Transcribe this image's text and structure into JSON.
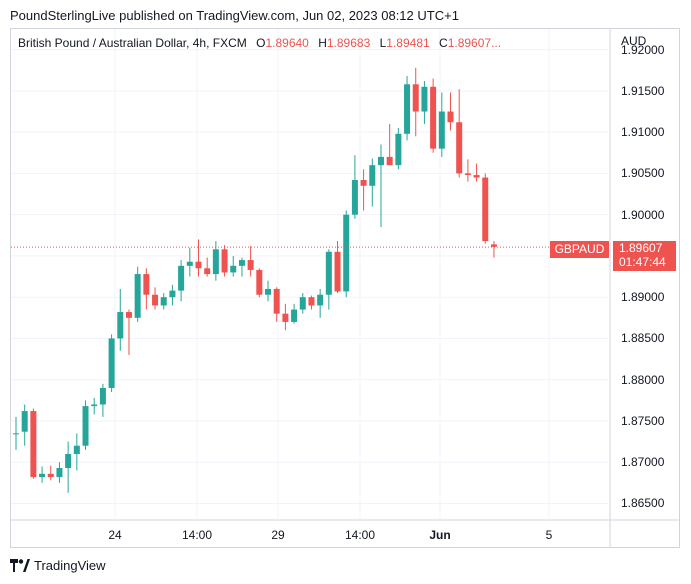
{
  "header": {
    "text": "PoundSterlingLive published on TradingView.com, Jun 02, 2023 08:12 UTC+1"
  },
  "legend": {
    "symbol": "British Pound / Australian Dollar, 4h, FXCM",
    "o_label": "O",
    "o_value": "1.89640",
    "h_label": "H",
    "h_value": "1.89683",
    "l_label": "L",
    "l_value": "1.89481",
    "c_label": "C",
    "c_value": "1.89607..."
  },
  "price_axis": {
    "unit": "AUD",
    "ticks": [
      "1.92000",
      "1.91500",
      "1.91000",
      "1.90500",
      "1.90000",
      "1.89500",
      "1.89000",
      "1.88500",
      "1.88000",
      "1.87500",
      "1.87000",
      "1.86500"
    ]
  },
  "time_axis": {
    "ticks": [
      "24",
      "14:00",
      "29",
      "14:00",
      "Jun",
      "5"
    ]
  },
  "last_price": {
    "symbol_tag": "GBPAUD",
    "price": "1.89607",
    "countdown": "01:47:44"
  },
  "footer": {
    "brand": "TradingView",
    "logo_icon": "tradingview-logo-icon"
  },
  "colors": {
    "up": "#26a69a",
    "down": "#ef5350",
    "grid": "#f0f3fa",
    "border": "#d1d4dc"
  },
  "chart_data": {
    "type": "candlestick",
    "symbol": "GBPAUD",
    "interval": "4h",
    "ylim": [
      1.863,
      1.9225
    ],
    "candles": [
      {
        "o": 1.8735,
        "h": 1.8755,
        "l": 1.8715,
        "c": 1.8735
      },
      {
        "o": 1.8737,
        "h": 1.877,
        "l": 1.872,
        "c": 1.8762
      },
      {
        "o": 1.8762,
        "h": 1.8765,
        "l": 1.868,
        "c": 1.8682
      },
      {
        "o": 1.8682,
        "h": 1.8695,
        "l": 1.8675,
        "c": 1.8686
      },
      {
        "o": 1.8686,
        "h": 1.8696,
        "l": 1.8678,
        "c": 1.8682
      },
      {
        "o": 1.8682,
        "h": 1.87,
        "l": 1.8675,
        "c": 1.8693
      },
      {
        "o": 1.8693,
        "h": 1.8725,
        "l": 1.8663,
        "c": 1.871
      },
      {
        "o": 1.871,
        "h": 1.8735,
        "l": 1.869,
        "c": 1.872
      },
      {
        "o": 1.872,
        "h": 1.8775,
        "l": 1.8715,
        "c": 1.8768
      },
      {
        "o": 1.8768,
        "h": 1.8778,
        "l": 1.8758,
        "c": 1.877
      },
      {
        "o": 1.877,
        "h": 1.8795,
        "l": 1.8755,
        "c": 1.879
      },
      {
        "o": 1.879,
        "h": 1.8855,
        "l": 1.8785,
        "c": 1.885
      },
      {
        "o": 1.885,
        "h": 1.891,
        "l": 1.8835,
        "c": 1.8882
      },
      {
        "o": 1.8882,
        "h": 1.8885,
        "l": 1.883,
        "c": 1.8875
      },
      {
        "o": 1.8875,
        "h": 1.8937,
        "l": 1.887,
        "c": 1.8928
      },
      {
        "o": 1.8928,
        "h": 1.8935,
        "l": 1.8885,
        "c": 1.8903
      },
      {
        "o": 1.8903,
        "h": 1.8912,
        "l": 1.8885,
        "c": 1.889
      },
      {
        "o": 1.889,
        "h": 1.8905,
        "l": 1.8885,
        "c": 1.89
      },
      {
        "o": 1.89,
        "h": 1.8915,
        "l": 1.889,
        "c": 1.8908
      },
      {
        "o": 1.8908,
        "h": 1.8945,
        "l": 1.8895,
        "c": 1.8938
      },
      {
        "o": 1.8938,
        "h": 1.896,
        "l": 1.8925,
        "c": 1.8943
      },
      {
        "o": 1.8943,
        "h": 1.897,
        "l": 1.8925,
        "c": 1.8935
      },
      {
        "o": 1.8935,
        "h": 1.8948,
        "l": 1.8925,
        "c": 1.8928
      },
      {
        "o": 1.8928,
        "h": 1.8968,
        "l": 1.892,
        "c": 1.8958
      },
      {
        "o": 1.8958,
        "h": 1.8963,
        "l": 1.8925,
        "c": 1.893
      },
      {
        "o": 1.893,
        "h": 1.895,
        "l": 1.8925,
        "c": 1.8938
      },
      {
        "o": 1.8938,
        "h": 1.8948,
        "l": 1.8925,
        "c": 1.8945
      },
      {
        "o": 1.8945,
        "h": 1.8962,
        "l": 1.8925,
        "c": 1.8933
      },
      {
        "o": 1.8933,
        "h": 1.8935,
        "l": 1.89,
        "c": 1.8903
      },
      {
        "o": 1.8903,
        "h": 1.892,
        "l": 1.8895,
        "c": 1.891
      },
      {
        "o": 1.891,
        "h": 1.8912,
        "l": 1.887,
        "c": 1.888
      },
      {
        "o": 1.888,
        "h": 1.8892,
        "l": 1.886,
        "c": 1.887
      },
      {
        "o": 1.887,
        "h": 1.8892,
        "l": 1.8868,
        "c": 1.8885
      },
      {
        "o": 1.8885,
        "h": 1.8905,
        "l": 1.888,
        "c": 1.89
      },
      {
        "o": 1.89,
        "h": 1.8902,
        "l": 1.8885,
        "c": 1.889
      },
      {
        "o": 1.889,
        "h": 1.891,
        "l": 1.8875,
        "c": 1.8903
      },
      {
        "o": 1.8903,
        "h": 1.8958,
        "l": 1.8885,
        "c": 1.8955
      },
      {
        "o": 1.8955,
        "h": 1.8968,
        "l": 1.8905,
        "c": 1.8907
      },
      {
        "o": 1.8907,
        "h": 1.9005,
        "l": 1.89,
        "c": 1.9
      },
      {
        "o": 1.9,
        "h": 1.9072,
        "l": 1.8995,
        "c": 1.9042
      },
      {
        "o": 1.9042,
        "h": 1.9055,
        "l": 1.9005,
        "c": 1.9035
      },
      {
        "o": 1.9035,
        "h": 1.9068,
        "l": 1.901,
        "c": 1.906
      },
      {
        "o": 1.906,
        "h": 1.9085,
        "l": 1.8985,
        "c": 1.907
      },
      {
        "o": 1.907,
        "h": 1.911,
        "l": 1.906,
        "c": 1.906
      },
      {
        "o": 1.906,
        "h": 1.9105,
        "l": 1.9055,
        "c": 1.9098
      },
      {
        "o": 1.9098,
        "h": 1.9168,
        "l": 1.909,
        "c": 1.9158
      },
      {
        "o": 1.9158,
        "h": 1.9178,
        "l": 1.9095,
        "c": 1.9125
      },
      {
        "o": 1.9125,
        "h": 1.9162,
        "l": 1.911,
        "c": 1.9155
      },
      {
        "o": 1.9155,
        "h": 1.9165,
        "l": 1.9075,
        "c": 1.908
      },
      {
        "o": 1.908,
        "h": 1.9148,
        "l": 1.907,
        "c": 1.9125
      },
      {
        "o": 1.9125,
        "h": 1.9148,
        "l": 1.9102,
        "c": 1.9112
      },
      {
        "o": 1.9112,
        "h": 1.9152,
        "l": 1.9045,
        "c": 1.905
      },
      {
        "o": 1.905,
        "h": 1.9067,
        "l": 1.904,
        "c": 1.9048
      },
      {
        "o": 1.9048,
        "h": 1.9062,
        "l": 1.904,
        "c": 1.9045
      },
      {
        "o": 1.9045,
        "h": 1.905,
        "l": 1.8965,
        "c": 1.8968
      },
      {
        "o": 1.8964,
        "h": 1.8968,
        "l": 1.8948,
        "c": 1.8961
      }
    ]
  }
}
